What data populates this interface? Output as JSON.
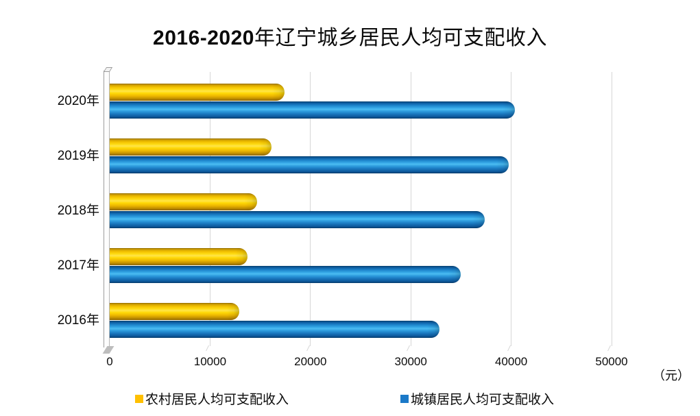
{
  "title": "2016-2020年辽宁城乡居民人均可支配收入",
  "unit_label": "（元）",
  "chart_data": {
    "type": "bar",
    "orientation": "horizontal",
    "title": "2016-2020年辽宁城乡居民人均可支配收入",
    "categories": [
      "2020年",
      "2019年",
      "2018年",
      "2017年",
      "2016年"
    ],
    "series": [
      {
        "name": "农村居民人均可支配收入",
        "color": "#FFC000",
        "values": [
          17450,
          16108,
          14656,
          13747,
          12881
        ]
      },
      {
        "name": "城镇居民人均可支配收入",
        "color": "#1B79C8",
        "values": [
          40376,
          39777,
          37342,
          34993,
          32876
        ]
      }
    ],
    "xlim": [
      0,
      50000
    ],
    "xticks": [
      0,
      10000,
      20000,
      30000,
      40000,
      50000
    ],
    "xlabel": "（元）",
    "ylabel": "",
    "grid": true,
    "legend_position": "bottom",
    "bar_style": "cylinder-3d"
  }
}
